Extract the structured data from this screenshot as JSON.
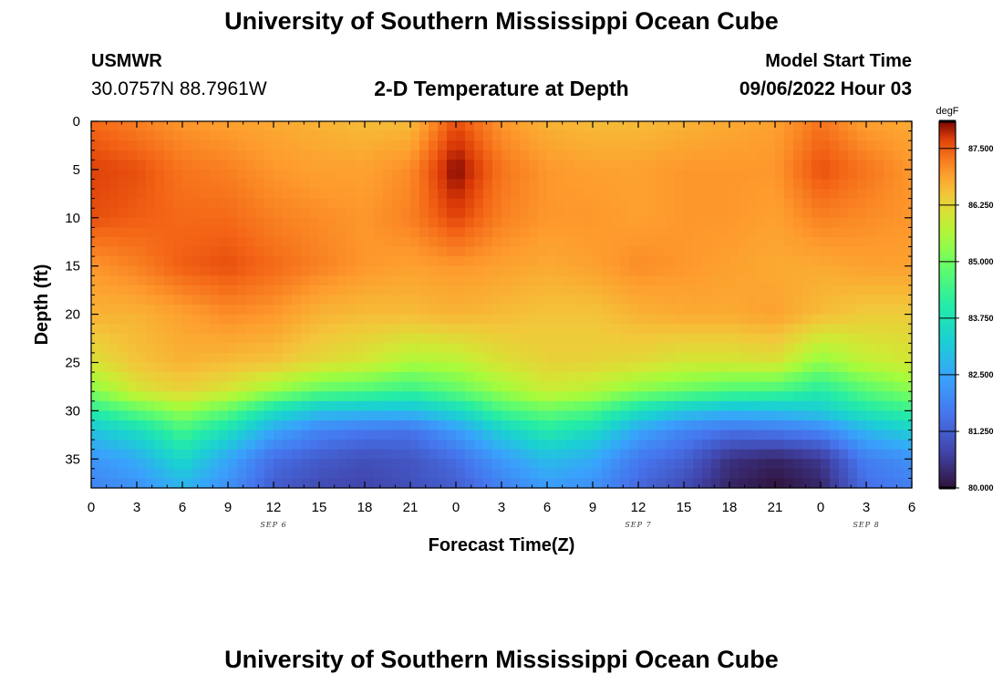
{
  "header": {
    "title": "University of Southern Mississippi Ocean Cube",
    "station_id": "USMWR",
    "station_coords": "30.0757N  88.7961W",
    "plot_title": "2-D Temperature at Depth",
    "model_label": "Model Start Time",
    "model_time": "09/06/2022 Hour 03"
  },
  "footer": {
    "title": "University of Southern Mississippi Ocean Cube"
  },
  "chart_data": {
    "type": "heatmap",
    "xlabel": "Forecast Time(Z)",
    "ylabel": "Depth (ft)",
    "x_range_hours": [
      0,
      54
    ],
    "y_range_ft": [
      0,
      38
    ],
    "x_tick_labels": [
      "0",
      "3",
      "6",
      "9",
      "12",
      "15",
      "18",
      "21",
      "0",
      "3",
      "6",
      "9",
      "12",
      "15",
      "18",
      "21",
      "0",
      "3",
      "6"
    ],
    "y_tick_labels": [
      "0",
      "5",
      "10",
      "15",
      "20",
      "25",
      "30",
      "35"
    ],
    "y_tick_values": [
      0,
      5,
      10,
      15,
      20,
      25,
      30,
      35
    ],
    "day_labels": [
      {
        "text": "SEP 6",
        "hour": 12
      },
      {
        "text": "SEP 7",
        "hour": 36
      },
      {
        "text": "SEP 8",
        "hour": 51
      }
    ],
    "colorbar": {
      "units": "degF",
      "min": 80.0,
      "max": 88.1,
      "labels": [
        "80.000",
        "81.250",
        "82.500",
        "83.750",
        "85.000",
        "86.250",
        "87.500"
      ],
      "label_values": [
        80.0,
        81.25,
        82.5,
        83.75,
        85.0,
        86.25,
        87.5
      ]
    },
    "temperature_grid": {
      "depths_ft": [
        0,
        5,
        10,
        15,
        20,
        25,
        28,
        30,
        32,
        35,
        38
      ],
      "hours": [
        0,
        3,
        6,
        9,
        12,
        15,
        18,
        21,
        24,
        27,
        30,
        33,
        36,
        39,
        42,
        45,
        48,
        51,
        54
      ],
      "values": [
        [
          87.4,
          87.2,
          87.0,
          86.9,
          86.8,
          86.7,
          86.6,
          86.6,
          87.6,
          87.0,
          86.7,
          86.6,
          86.6,
          86.7,
          86.8,
          86.9,
          87.3,
          86.9,
          86.8
        ],
        [
          87.7,
          87.6,
          87.3,
          87.2,
          87.0,
          86.9,
          86.9,
          87.1,
          88.1,
          87.3,
          87.0,
          86.9,
          86.9,
          87.0,
          87.0,
          87.0,
          87.6,
          87.3,
          87.0
        ],
        [
          87.6,
          87.5,
          87.4,
          87.4,
          87.2,
          87.1,
          87.0,
          87.2,
          87.7,
          87.2,
          87.0,
          87.0,
          86.9,
          87.0,
          87.0,
          86.9,
          87.2,
          87.1,
          87.0
        ],
        [
          87.0,
          87.2,
          87.5,
          87.6,
          87.4,
          87.2,
          87.0,
          86.9,
          87.0,
          86.9,
          86.8,
          86.9,
          87.1,
          87.0,
          86.9,
          86.8,
          86.8,
          86.9,
          86.9
        ],
        [
          86.7,
          86.7,
          86.9,
          87.1,
          87.0,
          86.7,
          86.6,
          86.6,
          86.7,
          86.6,
          86.5,
          86.5,
          86.7,
          86.8,
          86.8,
          86.9,
          86.6,
          86.4,
          86.4
        ],
        [
          86.1,
          86.5,
          86.7,
          86.6,
          86.5,
          86.2,
          86.0,
          85.6,
          85.7,
          86.1,
          86.3,
          86.3,
          86.2,
          86.0,
          86.0,
          86.1,
          85.3,
          85.8,
          86.0
        ],
        [
          85.2,
          86.0,
          86.3,
          86.0,
          85.4,
          84.8,
          84.6,
          84.3,
          84.8,
          85.4,
          85.9,
          85.7,
          85.2,
          84.9,
          84.6,
          84.5,
          84.0,
          84.7,
          85.2
        ],
        [
          84.1,
          84.8,
          85.4,
          84.8,
          83.7,
          83.0,
          82.9,
          82.9,
          83.5,
          84.5,
          84.9,
          84.6,
          83.7,
          83.1,
          82.8,
          82.9,
          83.2,
          83.9,
          84.3
        ],
        [
          83.0,
          83.6,
          84.5,
          83.7,
          82.5,
          81.9,
          81.7,
          81.6,
          82.3,
          83.3,
          84.0,
          83.6,
          82.5,
          81.9,
          81.6,
          81.7,
          81.9,
          82.8,
          83.3
        ],
        [
          82.2,
          82.6,
          83.5,
          82.5,
          81.5,
          81.2,
          81.0,
          81.1,
          81.5,
          82.3,
          82.9,
          82.6,
          81.7,
          81.3,
          80.5,
          80.3,
          80.6,
          81.8,
          82.1
        ],
        [
          81.9,
          82.1,
          82.7,
          82.1,
          81.2,
          80.9,
          80.8,
          81.0,
          81.2,
          81.8,
          82.3,
          82.1,
          81.4,
          80.9,
          80.3,
          80.0,
          80.3,
          81.5,
          81.8
        ]
      ]
    }
  }
}
